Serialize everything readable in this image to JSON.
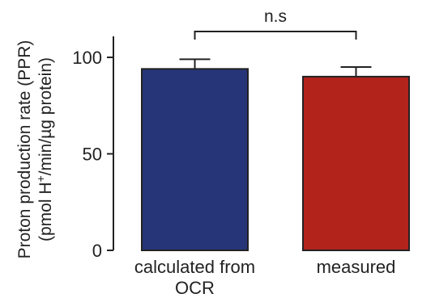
{
  "chart_data": {
    "type": "bar",
    "categories": [
      [
        "calculated from",
        "OCR"
      ],
      [
        "measured"
      ]
    ],
    "values": [
      94,
      90
    ],
    "errors": [
      5,
      5
    ],
    "colors": [
      "#263578",
      "#b2231c"
    ],
    "ylabel_line1": "Proton production rate (PPR)",
    "ylabel_line2_pre": "(pmol H",
    "ylabel_line2_sup": "+",
    "ylabel_line2_post": "/min/µg protein)",
    "ylim": [
      0,
      110
    ],
    "yticks": [
      0,
      50,
      100
    ],
    "significance": {
      "label": "n.s",
      "between": [
        0,
        1
      ]
    }
  }
}
